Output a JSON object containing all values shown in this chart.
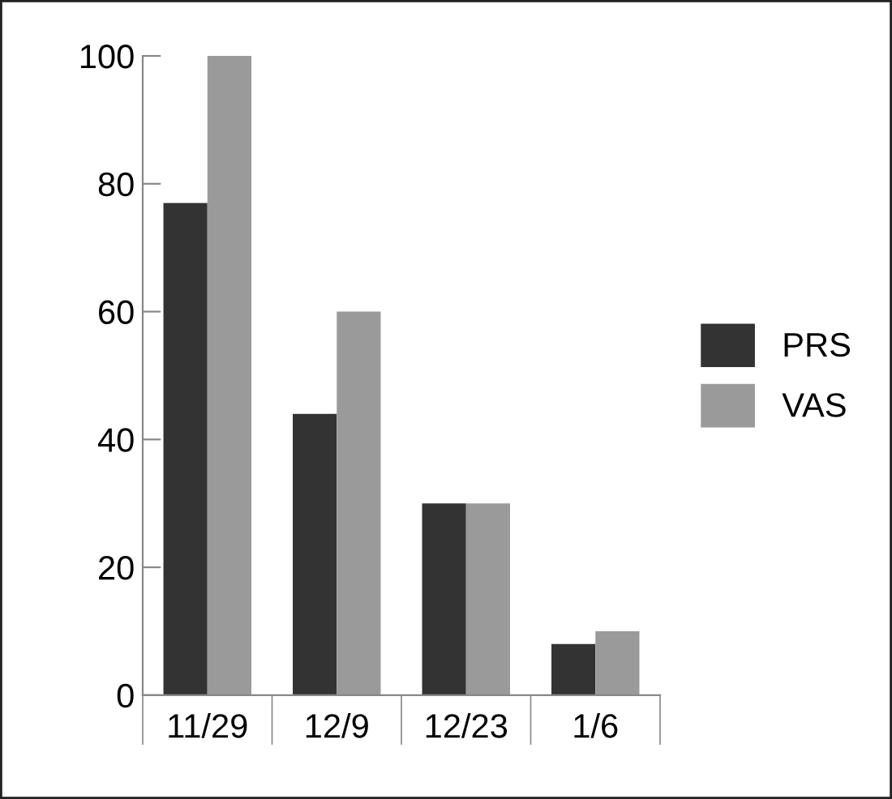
{
  "chart_data": {
    "type": "bar",
    "categories": [
      "11/29",
      "12/9",
      "12/23",
      "1/6"
    ],
    "series": [
      {
        "name": "PRS",
        "color": "#333333",
        "values": [
          77,
          44,
          30,
          8
        ]
      },
      {
        "name": "VAS",
        "color": "#9a9a9a",
        "values": [
          100,
          60,
          30,
          10
        ]
      }
    ],
    "ylim": [
      0,
      100
    ],
    "yticks": [
      0,
      20,
      40,
      60,
      80,
      100
    ],
    "grid": false,
    "legend": "right"
  }
}
